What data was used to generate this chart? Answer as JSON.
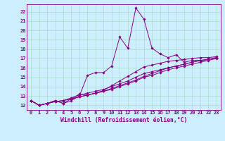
{
  "xlabel": "Windchill (Refroidissement éolien,°C)",
  "bg_color": "#cceeff",
  "line_color": "#880088",
  "grid_color": "#aadddd",
  "xlim": [
    -0.5,
    23.5
  ],
  "ylim": [
    11.5,
    22.8
  ],
  "xticks": [
    0,
    1,
    2,
    3,
    4,
    5,
    6,
    7,
    8,
    9,
    10,
    11,
    12,
    13,
    14,
    15,
    16,
    17,
    18,
    19,
    20,
    21,
    22,
    23
  ],
  "yticks": [
    12,
    13,
    14,
    15,
    16,
    17,
    18,
    19,
    20,
    21,
    22
  ],
  "series": [
    [
      12.5,
      12.0,
      12.2,
      12.5,
      12.2,
      12.5,
      13.0,
      15.2,
      15.5,
      15.5,
      16.2,
      19.3,
      18.1,
      22.4,
      21.2,
      18.1,
      17.5,
      17.1,
      17.4,
      16.6,
      16.8,
      16.8,
      16.9,
      17.1
    ],
    [
      12.5,
      12.0,
      12.2,
      12.5,
      12.2,
      12.7,
      13.2,
      13.1,
      13.3,
      13.6,
      14.1,
      14.6,
      15.1,
      15.6,
      16.1,
      16.3,
      16.5,
      16.7,
      16.8,
      16.9,
      17.0,
      17.1,
      17.1,
      17.2
    ],
    [
      12.5,
      12.0,
      12.2,
      12.4,
      12.5,
      12.8,
      13.1,
      13.3,
      13.5,
      13.7,
      14.0,
      14.3,
      14.6,
      15.0,
      15.4,
      15.6,
      15.8,
      16.0,
      16.2,
      16.4,
      16.6,
      16.8,
      16.9,
      17.1
    ],
    [
      12.5,
      12.0,
      12.2,
      12.4,
      12.5,
      12.7,
      12.9,
      13.1,
      13.3,
      13.5,
      13.8,
      14.1,
      14.4,
      14.7,
      15.1,
      15.4,
      15.7,
      16.0,
      16.2,
      16.4,
      16.6,
      16.8,
      16.9,
      17.1
    ],
    [
      12.5,
      12.0,
      12.2,
      12.4,
      12.5,
      12.7,
      12.9,
      13.1,
      13.3,
      13.5,
      13.7,
      14.0,
      14.3,
      14.6,
      15.0,
      15.2,
      15.5,
      15.8,
      16.0,
      16.2,
      16.4,
      16.6,
      16.8,
      17.0
    ]
  ],
  "marker": "D",
  "marker_size": 1.8,
  "linewidth": 0.7,
  "tick_fontsize": 5.0,
  "xlabel_fontsize": 5.8
}
